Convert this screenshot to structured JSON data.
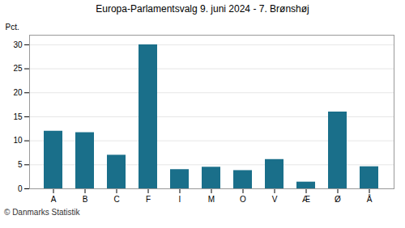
{
  "chart_data": {
    "type": "bar",
    "title": "Europa-Parlamentsvalg 9. juni 2024 - 7. Brønshøj",
    "ylabel": "Pct.",
    "caption": "© Danmarks Statistik",
    "categories": [
      "A",
      "B",
      "C",
      "F",
      "I",
      "M",
      "O",
      "V",
      "Æ",
      "Ø",
      "Å"
    ],
    "values": [
      12.0,
      11.7,
      7.0,
      30.0,
      4.0,
      4.5,
      3.8,
      6.1,
      1.4,
      16.0,
      4.6
    ],
    "color": "#1a6f8a",
    "ylim": [
      0,
      32
    ],
    "yticks": [
      0,
      5,
      10,
      15,
      20,
      25,
      30
    ],
    "grid": true
  }
}
